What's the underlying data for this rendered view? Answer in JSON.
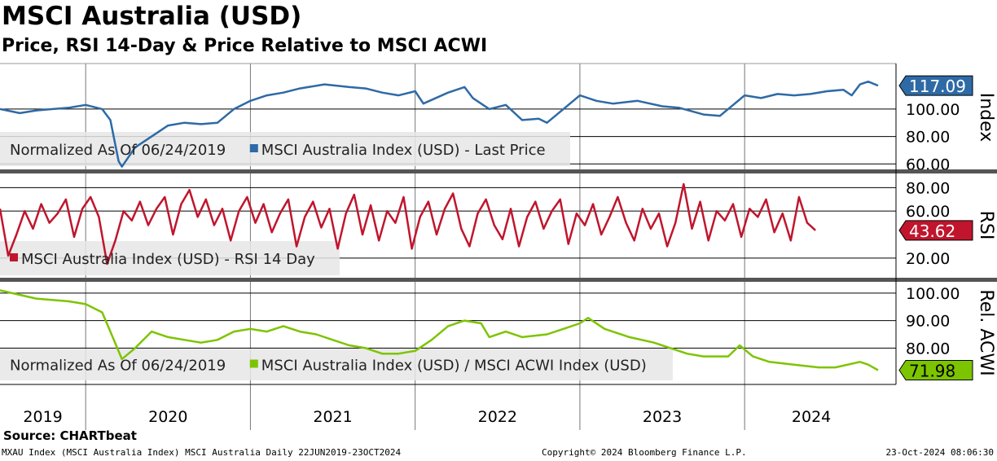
{
  "header": {
    "title": "MSCI Australia (USD)",
    "subtitle": "Price, RSI 14-Day & Price Relative to MSCI ACWI"
  },
  "footer": {
    "source": "Source: CHARTbeat",
    "left": "MXAU Index (MSCI Australia Index) MSCI Australia  Daily 22JUN2019-23OCT2024",
    "center": "Copyright© 2024 Bloomberg Finance L.P.",
    "right": "23-Oct-2024 08:06:30"
  },
  "colors": {
    "price": "#2e6aa6",
    "rsi": "#c0152d",
    "rel": "#7dc400"
  },
  "chart_data": [
    {
      "type": "line",
      "panel": "price",
      "axis_label": "Index",
      "legend": [
        "Normalized As Of 06/24/2019",
        "MSCI Australia Index (USD) - Last Price"
      ],
      "yticks": [
        "100.00",
        "80.00",
        "60.00"
      ],
      "ytick_values": [
        100,
        80,
        60
      ],
      "ylim": [
        56,
        132
      ],
      "last_value": 117.09,
      "last_label": "117.09",
      "x": [
        2019.48,
        2019.6,
        2019.7,
        2019.8,
        2019.9,
        2020.0,
        2020.1,
        2020.15,
        2020.2,
        2020.22,
        2020.3,
        2020.4,
        2020.5,
        2020.6,
        2020.7,
        2020.8,
        2020.9,
        2021.0,
        2021.1,
        2021.2,
        2021.3,
        2021.45,
        2021.6,
        2021.7,
        2021.8,
        2021.9,
        2022.0,
        2022.05,
        2022.2,
        2022.3,
        2022.35,
        2022.45,
        2022.55,
        2022.65,
        2022.75,
        2022.8,
        2022.9,
        2023.0,
        2023.1,
        2023.2,
        2023.35,
        2023.5,
        2023.6,
        2023.75,
        2023.85,
        2023.95,
        2024.0,
        2024.1,
        2024.2,
        2024.3,
        2024.4,
        2024.5,
        2024.6,
        2024.65,
        2024.7,
        2024.75,
        2024.81
      ],
      "values": [
        100,
        97,
        99,
        100,
        101,
        103,
        100,
        92,
        62,
        58,
        72,
        80,
        88,
        90,
        89,
        90,
        100,
        106,
        110,
        112,
        115,
        118,
        116,
        115,
        112,
        110,
        113,
        104,
        112,
        116,
        108,
        100,
        103,
        92,
        93,
        90,
        100,
        110,
        106,
        104,
        106,
        102,
        101,
        96,
        95,
        105,
        110,
        108,
        111,
        110,
        111,
        113,
        114,
        110,
        118,
        120,
        117.09
      ]
    },
    {
      "type": "line",
      "panel": "rsi",
      "axis_label": "RSI",
      "legend": [
        "MSCI Australia Index (USD) - RSI 14 Day"
      ],
      "yticks": [
        "80.00",
        "60.00",
        "20.00"
      ],
      "ytick_values": [
        80,
        60,
        20
      ],
      "ylim": [
        4,
        92
      ],
      "last_value": 43.62,
      "last_label": "43.62",
      "x_start": 2019.48,
      "x_step": 0.05,
      "values": [
        62,
        22,
        40,
        60,
        45,
        66,
        50,
        58,
        70,
        38,
        62,
        72,
        55,
        15,
        35,
        60,
        52,
        68,
        48,
        62,
        72,
        40,
        66,
        78,
        55,
        70,
        48,
        62,
        35,
        60,
        72,
        50,
        66,
        42,
        58,
        70,
        30,
        55,
        68,
        46,
        62,
        28,
        58,
        74,
        40,
        65,
        35,
        60,
        50,
        72,
        28,
        55,
        68,
        40,
        62,
        75,
        45,
        30,
        58,
        70,
        48,
        36,
        62,
        30,
        55,
        68,
        45,
        60,
        70,
        32,
        58,
        48,
        66,
        40,
        55,
        72,
        50,
        35,
        62,
        45,
        58,
        30,
        50,
        83,
        45,
        68,
        35,
        60,
        52,
        66,
        38,
        62,
        55,
        70,
        42,
        58,
        35,
        72,
        50,
        43.62
      ]
    },
    {
      "type": "line",
      "panel": "relative",
      "axis_label": "Rel. ACWI",
      "legend": [
        "Normalized As Of 06/24/2019",
        "MSCI Australia Index (USD) / MSCI ACWI Index (USD)"
      ],
      "yticks": [
        "100.00",
        "90.00",
        "80.00"
      ],
      "ytick_values": [
        100,
        90,
        80
      ],
      "ylim": [
        67.4,
        103.8
      ],
      "last_value": 71.98,
      "last_label": "71.98",
      "x": [
        2019.48,
        2019.7,
        2019.9,
        2020.0,
        2020.1,
        2020.15,
        2020.22,
        2020.3,
        2020.4,
        2020.5,
        2020.6,
        2020.7,
        2020.8,
        2020.9,
        2021.0,
        2021.1,
        2021.2,
        2021.3,
        2021.4,
        2021.5,
        2021.6,
        2021.7,
        2021.8,
        2021.9,
        2022.0,
        2022.1,
        2022.2,
        2022.3,
        2022.4,
        2022.45,
        2022.55,
        2022.65,
        2022.8,
        2022.9,
        2023.0,
        2023.05,
        2023.15,
        2023.3,
        2023.45,
        2023.55,
        2023.65,
        2023.75,
        2023.9,
        2023.97,
        2024.05,
        2024.15,
        2024.3,
        2024.45,
        2024.55,
        2024.7,
        2024.75,
        2024.81
      ],
      "values": [
        101,
        98,
        97,
        96,
        93,
        86,
        76,
        80,
        86,
        84,
        83,
        82,
        83,
        86,
        87,
        86,
        88,
        86,
        85,
        83,
        81,
        80,
        78,
        78,
        79,
        83,
        88,
        90,
        89,
        84,
        86,
        84,
        85,
        87,
        89,
        91,
        87,
        84,
        82,
        80,
        78,
        77,
        77,
        81,
        77,
        75,
        74,
        73,
        73,
        75,
        74,
        71.98
      ]
    }
  ],
  "xaxis": {
    "labels": [
      "2019",
      "2020",
      "2021",
      "2022",
      "2023",
      "2024"
    ],
    "ticks": [
      2020,
      2021,
      2022,
      2023,
      2024
    ],
    "xlim": [
      2019.48,
      2024.86
    ]
  }
}
